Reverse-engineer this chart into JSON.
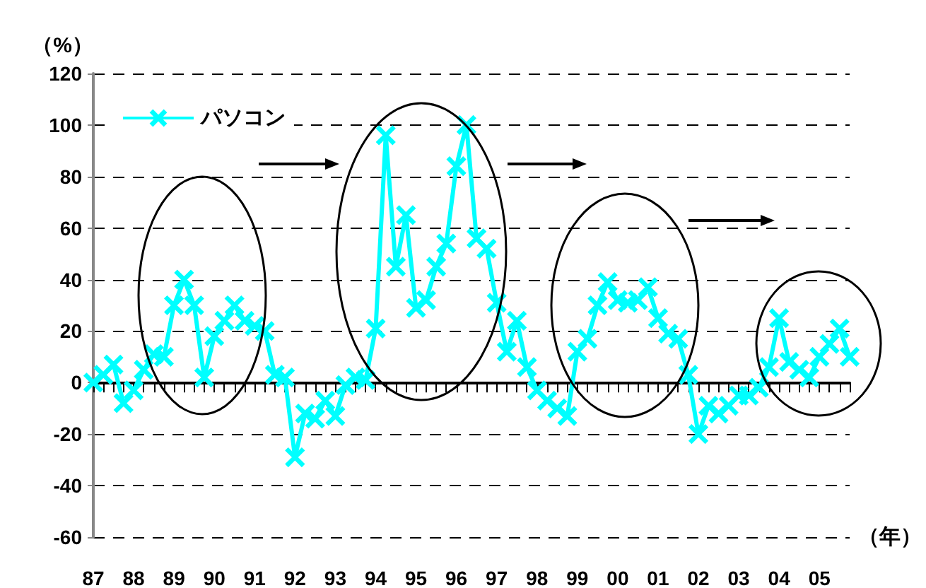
{
  "chart_data": {
    "type": "line",
    "xlabel": "（年）",
    "ylabel": "（%）",
    "categories": [
      "87",
      null,
      null,
      null,
      "88",
      null,
      null,
      null,
      "89",
      null,
      null,
      null,
      "90",
      null,
      null,
      null,
      "91",
      null,
      null,
      null,
      "92",
      null,
      null,
      null,
      "93",
      null,
      null,
      null,
      "94",
      null,
      null,
      null,
      "95",
      null,
      null,
      null,
      "96",
      null,
      null,
      null,
      "97",
      null,
      null,
      null,
      "98",
      null,
      null,
      null,
      "99",
      null,
      null,
      null,
      "00",
      null,
      null,
      null,
      "01",
      null,
      null,
      null,
      "02",
      null,
      null,
      null,
      "03",
      null,
      null,
      null,
      "04",
      null,
      null,
      null,
      "05",
      null,
      null,
      null
    ],
    "series": [
      {
        "name": "パソコン",
        "color": "#00ffff",
        "values": [
          0,
          3,
          7,
          -8,
          -3,
          5,
          11,
          10,
          30,
          40,
          30,
          2,
          18,
          24,
          30,
          24,
          22,
          20,
          3,
          2,
          -29,
          -12,
          -14,
          -7,
          -13,
          -1,
          2,
          1,
          21,
          96,
          45,
          65,
          29,
          32,
          45,
          54,
          84,
          100,
          56,
          52,
          31,
          12,
          24,
          6,
          -3,
          -7,
          -10,
          -13,
          12,
          17,
          30,
          39,
          32,
          31,
          32,
          37,
          25,
          19,
          17,
          3,
          -20,
          -9,
          -12,
          -9,
          -5,
          -5,
          -2,
          6,
          25,
          8,
          5,
          2,
          10,
          15,
          21,
          10
        ]
      }
    ],
    "ylim": [
      -60,
      120
    ],
    "yticks": [
      -60,
      -40,
      -20,
      0,
      20,
      40,
      60,
      80,
      100,
      120
    ],
    "grid": "y",
    "legend": "top left",
    "marker": "cross"
  }
}
